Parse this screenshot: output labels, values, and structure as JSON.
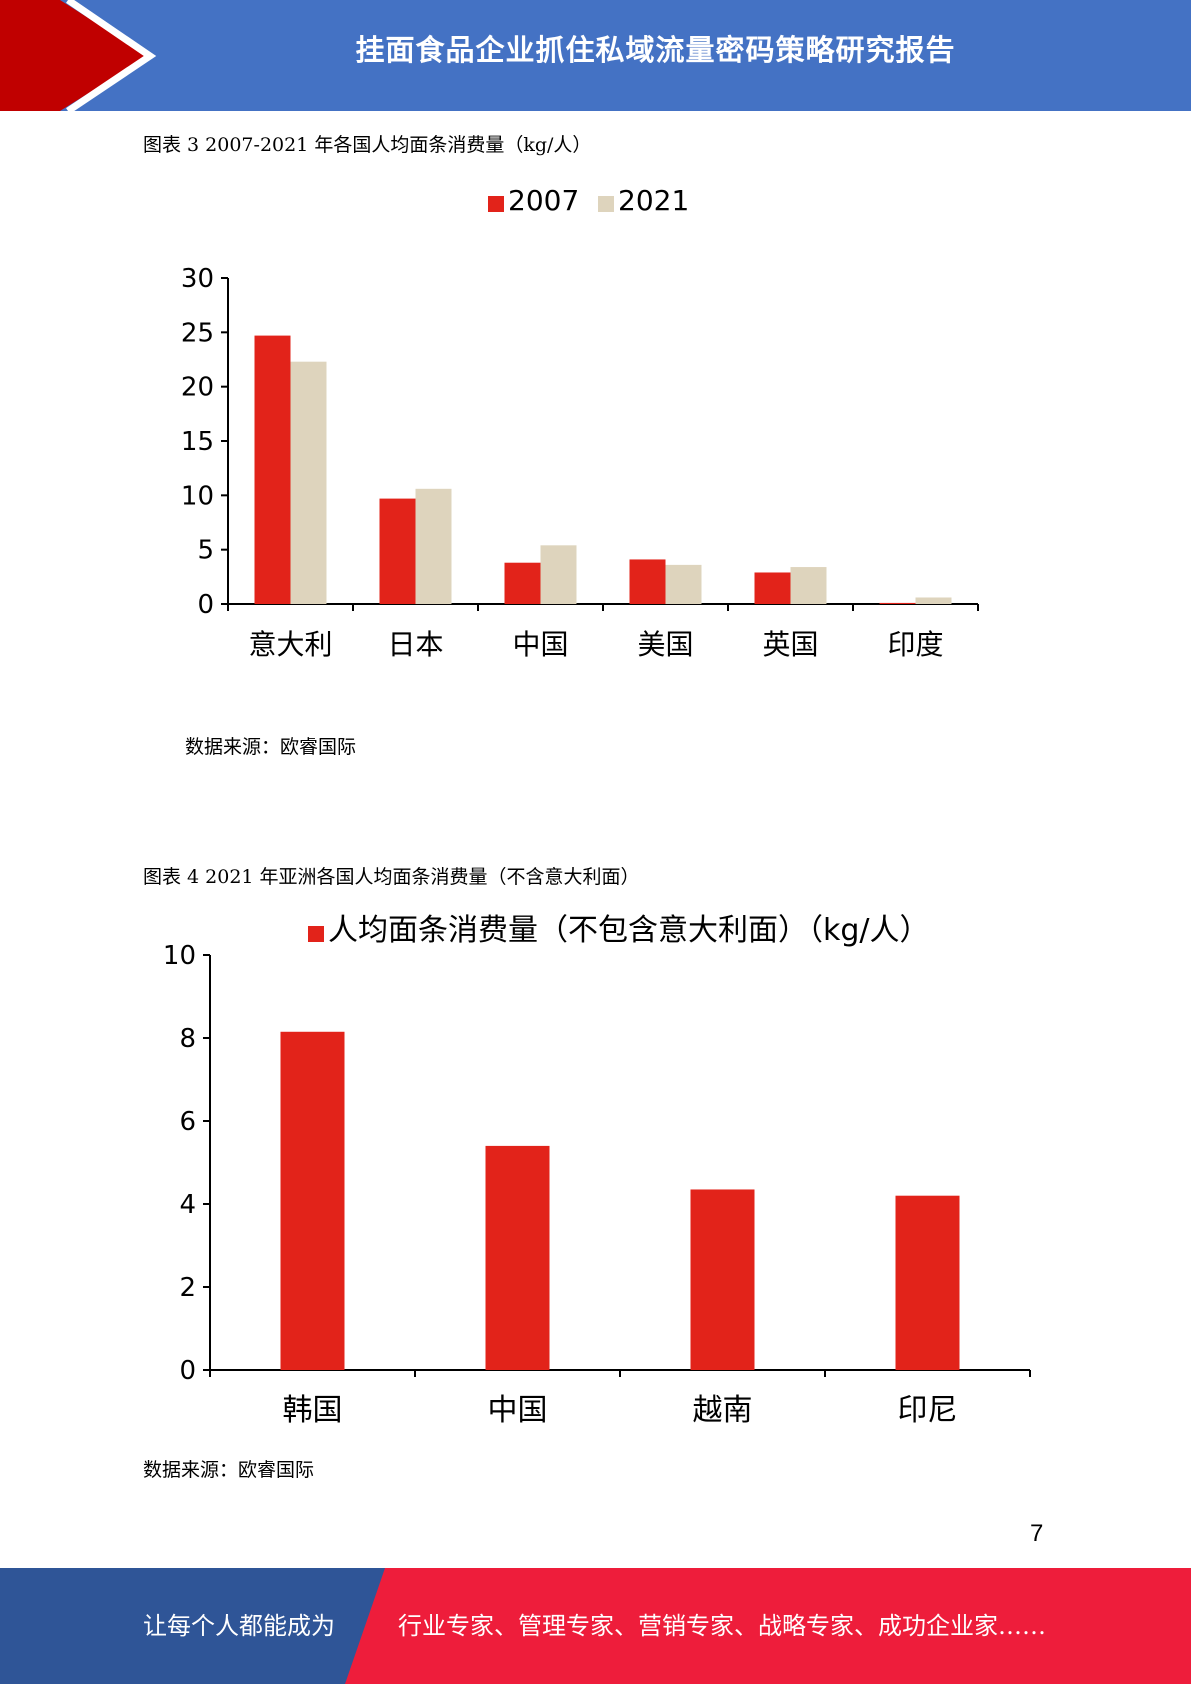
{
  "header": {
    "title": "挂面食品企业抓住私域流量密码策略研究报告"
  },
  "figure3": {
    "caption": "图表  3 2007-2021 年各国人均面条消费量（kg/人）",
    "source": "数据来源：欧睿国际"
  },
  "figure4": {
    "caption": "图表  4 2021 年亚洲各国人均面条消费量（不含意大利面）",
    "source": "数据来源：欧睿国际"
  },
  "chart_data": [
    {
      "type": "bar",
      "categories": [
        "意大利",
        "日本",
        "中国",
        "美国",
        "英国",
        "印度"
      ],
      "series": [
        {
          "name": "2007",
          "values": [
            24.7,
            9.7,
            3.8,
            4.1,
            2.9,
            0.1
          ],
          "color": "#e2231a"
        },
        {
          "name": "2021",
          "values": [
            22.3,
            10.6,
            5.4,
            3.6,
            3.4,
            0.6
          ],
          "color": "#ded4bd"
        }
      ],
      "yticks": [
        "0",
        "5",
        "10",
        "15",
        "20",
        "25",
        "30"
      ],
      "ylim": [
        0,
        30
      ],
      "legend_position": "top",
      "grid": false
    },
    {
      "type": "bar",
      "categories": [
        "韩国",
        "中国",
        "越南",
        "印尼"
      ],
      "series": [
        {
          "name": "人均面条消费量（不包含意大利面）（kg/人）",
          "values": [
            8.15,
            5.4,
            4.35,
            4.2
          ],
          "color": "#e2231a"
        }
      ],
      "yticks": [
        "0",
        "2",
        "4",
        "6",
        "8",
        "10"
      ],
      "ylim": [
        0,
        10
      ],
      "legend_position": "top",
      "grid": false
    }
  ],
  "page_number": "7",
  "footer": {
    "left_text": "让每个人都能成为",
    "right_text": "行业专家、管理专家、营销专家、战略专家、成功企业家……"
  },
  "colors": {
    "header_blue": "#4472c4",
    "accent_red": "#c00000",
    "footer_blue": "#2f5597",
    "footer_red": "#ee1d3b"
  }
}
